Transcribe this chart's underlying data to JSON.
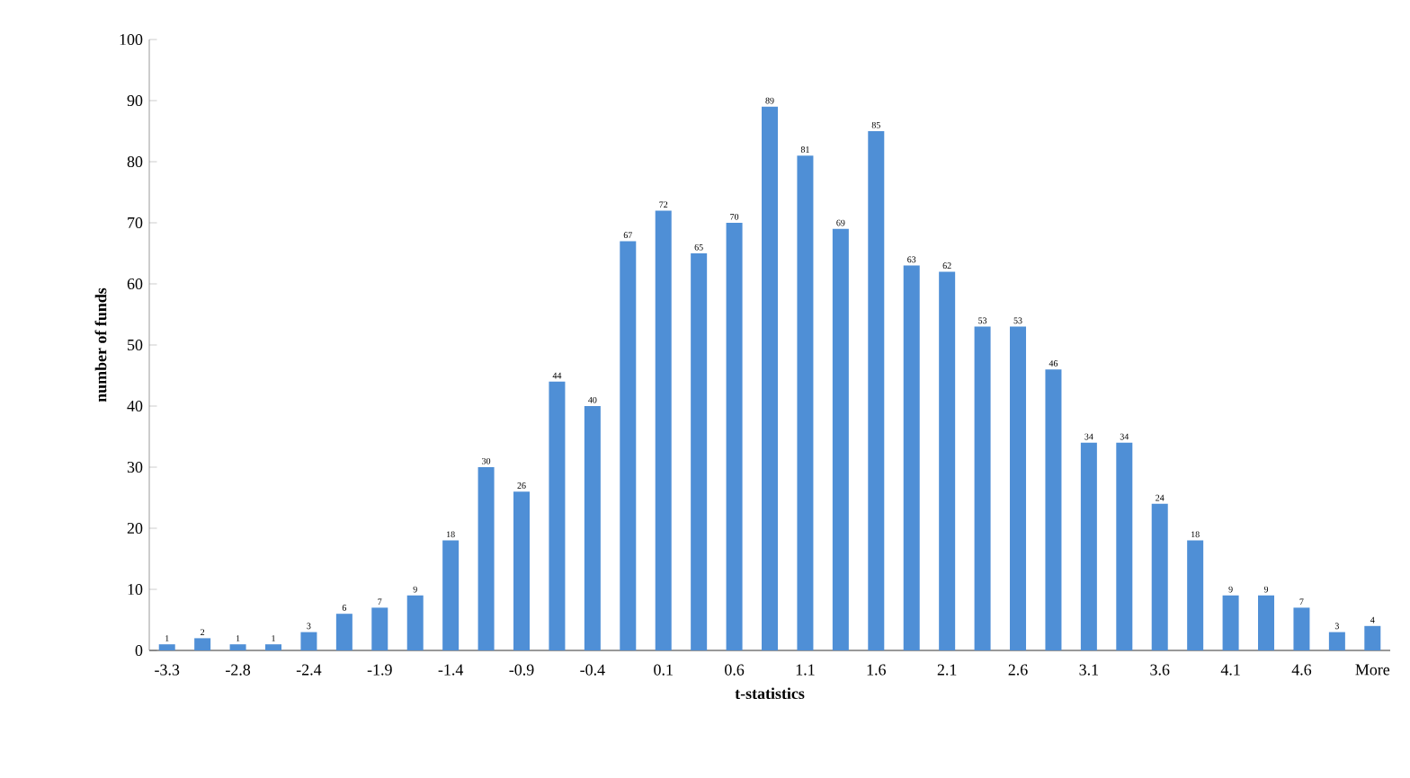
{
  "chart_data": {
    "type": "bar",
    "xlabel": "t-statistics",
    "ylabel": "number of funds",
    "categories": [
      "-3.3",
      null,
      "-2.8",
      null,
      "-2.4",
      null,
      "-1.9",
      null,
      "-1.4",
      null,
      "-0.9",
      null,
      "-0.4",
      null,
      "0.1",
      null,
      "0.6",
      null,
      "1.1",
      null,
      "1.6",
      null,
      "2.1",
      null,
      "2.6",
      null,
      "3.1",
      null,
      "3.6",
      null,
      "4.1",
      null,
      "4.6",
      null,
      "More"
    ],
    "values": [
      1,
      2,
      1,
      1,
      3,
      6,
      7,
      9,
      18,
      30,
      26,
      44,
      40,
      67,
      72,
      65,
      70,
      89,
      81,
      69,
      85,
      63,
      62,
      53,
      53,
      46,
      34,
      34,
      24,
      18,
      9,
      9,
      7,
      3,
      4
    ],
    "color": "#4f8fd6",
    "ylim": [
      0,
      100
    ],
    "yticks": [
      0,
      10,
      20,
      30,
      40,
      50,
      60,
      70,
      80,
      90,
      100
    ],
    "data_labels": true
  }
}
